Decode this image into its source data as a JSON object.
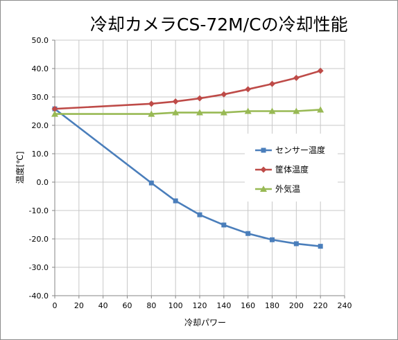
{
  "chart_data": {
    "type": "line",
    "title": "冷却カメラCS-72M/Cの冷却性能",
    "xlabel": "冷却パワー",
    "ylabel": "温度[℃]",
    "xlim": [
      0,
      240
    ],
    "ylim": [
      -40,
      50
    ],
    "x_ticks": [
      "0",
      "20",
      "40",
      "60",
      "80",
      "100",
      "120",
      "140",
      "160",
      "180",
      "200",
      "220",
      "240"
    ],
    "y_ticks": [
      "50.0",
      "40.0",
      "30.0",
      "20.0",
      "10.0",
      "0.0",
      "-10.0",
      "-20.0",
      "-30.0",
      "-40.0"
    ],
    "grid": true,
    "legend_position": "right",
    "series": [
      {
        "name": "センサー温度",
        "color": "#4a7ebb",
        "marker": "square",
        "x": [
          0,
          80,
          100,
          120,
          140,
          160,
          180,
          200,
          220
        ],
        "y": [
          25.8,
          -0.3,
          -6.6,
          -11.5,
          -15.1,
          -18.1,
          -20.3,
          -21.7,
          -22.6
        ]
      },
      {
        "name": "筐体温度",
        "color": "#be4b48",
        "marker": "diamond",
        "x": [
          0,
          80,
          100,
          120,
          140,
          160,
          180,
          200,
          220
        ],
        "y": [
          25.8,
          27.6,
          28.4,
          29.5,
          30.9,
          32.7,
          34.6,
          36.7,
          39.2
        ]
      },
      {
        "name": "外気温",
        "color": "#98b954",
        "marker": "triangle",
        "x": [
          0,
          80,
          100,
          120,
          140,
          160,
          180,
          200,
          220
        ],
        "y": [
          24.0,
          24.0,
          24.5,
          24.5,
          24.5,
          25.0,
          25.0,
          25.0,
          25.5
        ]
      }
    ]
  }
}
